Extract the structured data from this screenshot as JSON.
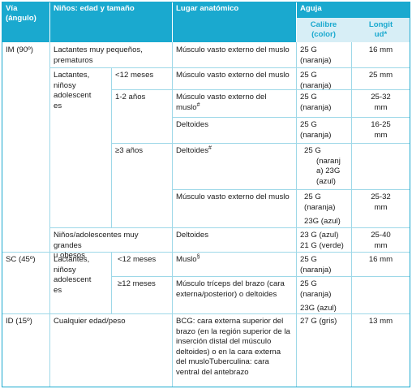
{
  "header": {
    "via": [
      "Vía",
      "(ángulo)"
    ],
    "ninos": "Niños: edad y tamaño",
    "lugar": "Lugar anatómico",
    "aguja": "Aguja",
    "calibre": [
      "Calibre",
      "(color)"
    ],
    "longitud": [
      "Longit",
      "ud*"
    ]
  },
  "rows": {
    "im": {
      "via": "IM (90º)",
      "lactantes_peq": [
        "Lactantes muy pequeños,",
        "prematuros"
      ],
      "lactantes_peq_lugar": "Músculo vasto externo del muslo",
      "lactantes_peq_calibre": [
        "25 G",
        "(naranja)"
      ],
      "lactantes_peq_long": "16 mm",
      "grupo": [
        "Lactantes,",
        "niñosy",
        "adolescent",
        "es"
      ],
      "lt12_edad": "<12 meses",
      "lt12_lugar": "Músculo vasto externo del muslo",
      "lt12_calibre": [
        "25 G",
        "(naranja)"
      ],
      "lt12_long": "25 mm",
      "a12_edad": "1-2 años",
      "a12_lugar1": [
        "Músculo vasto externo del",
        "muslo"
      ],
      "a12_sup1": "#",
      "a12_calibre1": [
        "25 G",
        "(naranja)"
      ],
      "a12_long1": [
        "25-32",
        "mm"
      ],
      "a12_lugar2": "Deltoides",
      "a12_calibre2": [
        "25 G",
        "(naranja)"
      ],
      "a12_long2": [
        "16-25",
        "mm"
      ],
      "a3_edad": "≥3 años",
      "a3_lugar1": "Deltoides",
      "a3_sup1": "#",
      "a3_calibre1": [
        "25 G",
        "(naranj",
        "a) 23G",
        "(azul)"
      ],
      "a3_lugar2": "Músculo vasto externo del muslo",
      "a3_calibre2": [
        "25 G",
        "(naranja)",
        "23G (azul)"
      ],
      "a3_long2": [
        "25-32",
        "mm"
      ],
      "obesos": [
        "Niños/adolescentes muy grandes",
        "u obesos"
      ],
      "obesos_lugar": "Deltoides",
      "obesos_calibre": [
        "23 G (azul)",
        "21 G (verde)"
      ],
      "obesos_long": [
        "25-40",
        "mm"
      ]
    },
    "sc": {
      "via": "SC (45º)",
      "grupo": [
        "Lactantes,",
        "niñosy",
        "adolescent",
        "es"
      ],
      "lt12_edad": "<12 meses",
      "lt12_lugar": "Muslo",
      "lt12_sup": "§",
      "lt12_calibre": [
        "25 G",
        "(naranja)"
      ],
      "lt12_long": "16 mm",
      "ge12_edad": "≥12 meses",
      "ge12_lugar": [
        "Músculo tríceps del brazo (cara",
        "externa/posterior) o deltoides"
      ],
      "ge12_calibre": [
        "25 G",
        "(naranja)",
        "23G (azul)"
      ]
    },
    "id": {
      "via": "ID (15º)",
      "edad": "Cualquier edad/peso",
      "lugar": [
        "BCG: cara externa superior del",
        "brazo (en la región superior de la",
        "inserción distal del músculo",
        "deltoides) o en la cara externa",
        "del musloTuberculina: cara",
        "ventral del antebrazo"
      ],
      "calibre": "27 G (gris)",
      "long": "13 mm"
    }
  },
  "colors": {
    "header": "#1aa9cf",
    "subheader": "#d7eef6",
    "grid": "#9ed8e8"
  }
}
